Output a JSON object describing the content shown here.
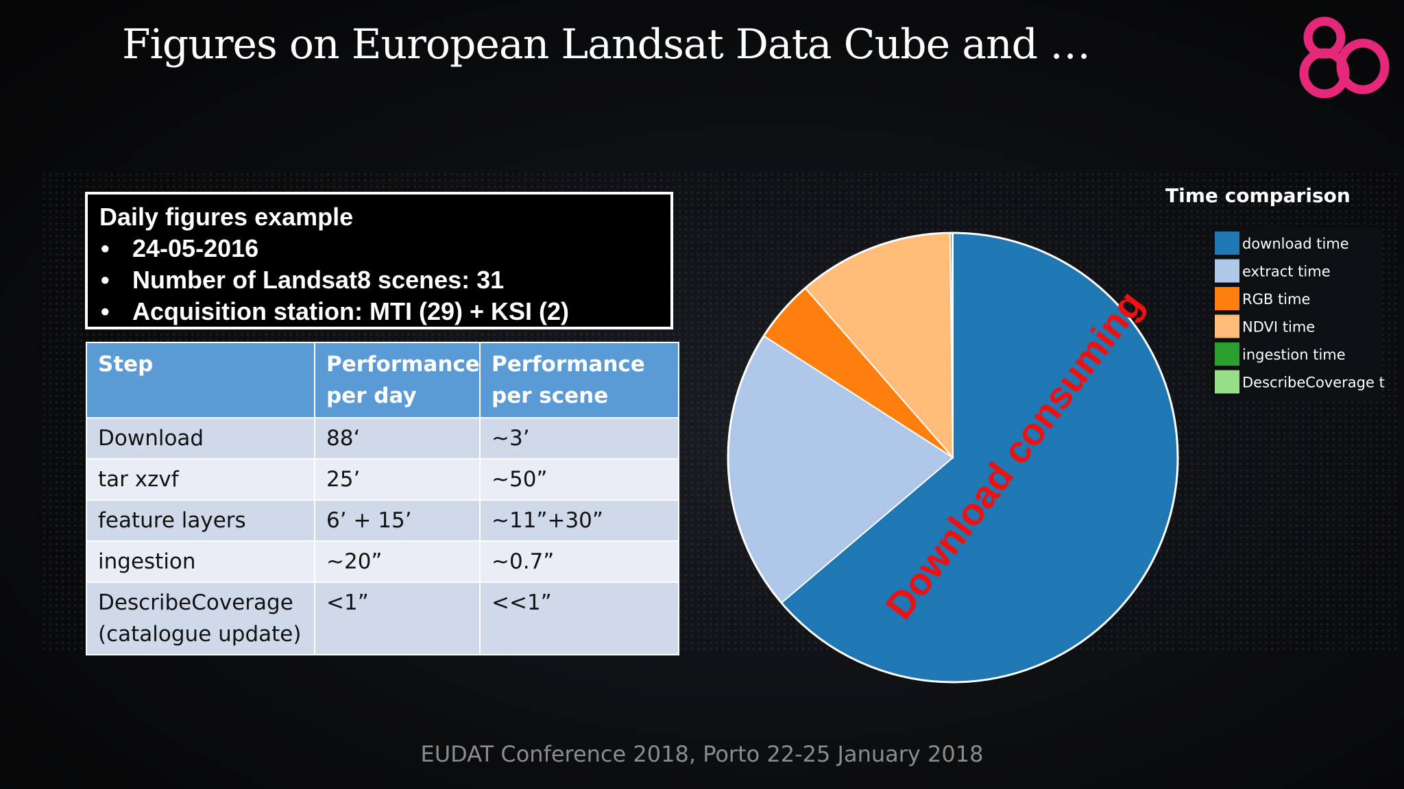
{
  "slide": {
    "title": "Figures on European Landsat Data Cube and …",
    "footer": "EUDAT Conference 2018, Porto 22-25 January 2018",
    "logo_text": "80"
  },
  "info_box": {
    "heading": "Daily figures example",
    "bullet": "•",
    "items": [
      "24-05-2016",
      "Number of Landsat8 scenes: 31",
      "Acquisition station: MTI (29) + KSI (2)"
    ]
  },
  "table": {
    "headers": [
      "Step",
      "Performance per day",
      "Performance per scene"
    ],
    "rows": [
      [
        "Download",
        "88‘",
        "~3’"
      ],
      [
        "tar xzvf",
        "25’",
        "~50”"
      ],
      [
        "feature layers",
        "6’ + 15’",
        "~11”+30”"
      ],
      [
        "ingestion",
        "~20”",
        "~0.7”"
      ],
      [
        "DescribeCoverage (catalogue update)",
        "<1”",
        "<<1”"
      ]
    ]
  },
  "chart_data": {
    "type": "pie",
    "title": "Time comparison",
    "annotation": "Download consuming",
    "labels": [
      "download time",
      "extract time",
      "RGB time",
      "NDVI time",
      "ingestion time",
      "DescribeCoverage t"
    ],
    "values": [
      63.8,
      20.3,
      4.5,
      11.2,
      0.15,
      0.05
    ],
    "colors": [
      "#1f77b4",
      "#aec7e8",
      "#ff7f0e",
      "#ffbb78",
      "#2ca02c",
      "#98df8a"
    ],
    "legend_position": "right"
  }
}
